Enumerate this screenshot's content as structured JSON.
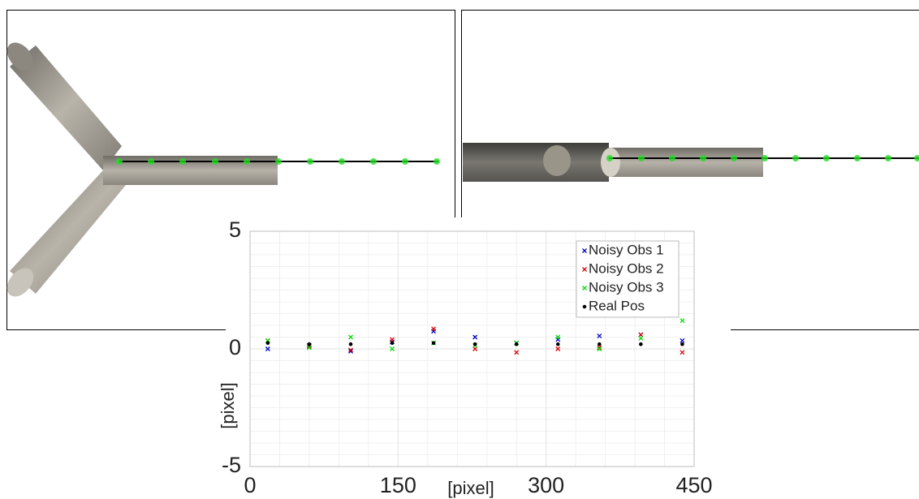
{
  "chart_data": {
    "type": "scatter",
    "x_label": "[pixel]",
    "y_label": "[pixel]",
    "xlim": [
      0,
      450
    ],
    "xticks": [
      0,
      150,
      300,
      450
    ],
    "ylim": [
      -5,
      5
    ],
    "yticks": [
      -5,
      0,
      5
    ],
    "grid": true,
    "legend": "upper right",
    "x": [
      18,
      60,
      102,
      144,
      186,
      228,
      270,
      312,
      354,
      396,
      438
    ],
    "series": [
      {
        "name": "Noisy Obs 1",
        "color": "#0000cc",
        "marker": "x",
        "values": [
          0.0,
          0.15,
          -0.1,
          0.3,
          0.75,
          0.5,
          0.25,
          0.4,
          0.55,
          0.6,
          0.35
        ]
      },
      {
        "name": "Noisy Obs 2",
        "color": "#dd0000",
        "marker": "x",
        "values": [
          0.35,
          0.1,
          -0.05,
          0.4,
          0.85,
          0.0,
          -0.15,
          0.0,
          0.05,
          0.6,
          -0.15
        ]
      },
      {
        "name": "Noisy Obs 3",
        "color": "#00dd00",
        "marker": "x",
        "values": [
          0.35,
          0.05,
          0.5,
          0.0,
          0.25,
          0.15,
          0.25,
          0.5,
          0.0,
          0.45,
          1.2
        ]
      },
      {
        "name": "Real Pos",
        "color": "#000000",
        "marker": "dot",
        "values": [
          0.25,
          0.2,
          0.2,
          0.25,
          0.25,
          0.2,
          0.2,
          0.2,
          0.2,
          0.2,
          0.2
        ]
      }
    ]
  }
}
